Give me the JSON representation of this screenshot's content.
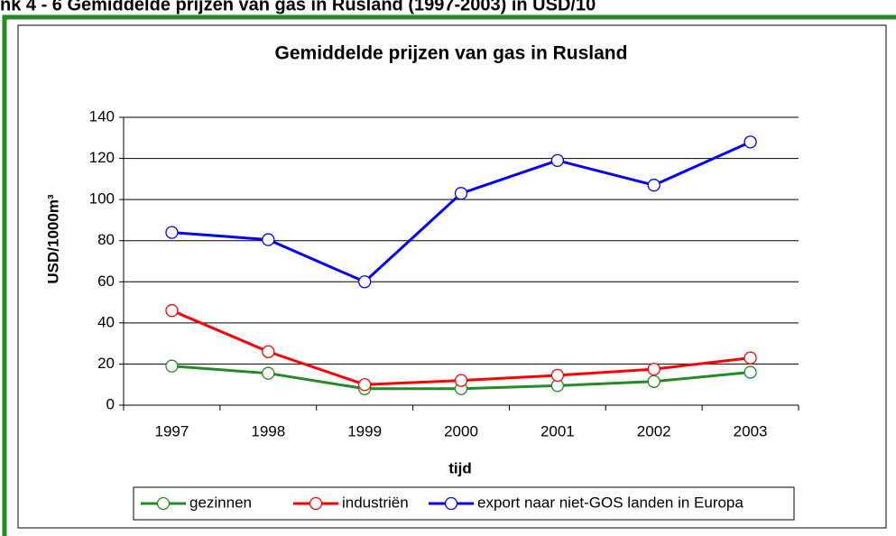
{
  "heading": "nk 4 - 6 Gemiddelde prijzen van gas in Rusland (1997-2003) in USD/10",
  "chart_data": {
    "type": "line",
    "title": "Gemiddelde prijzen van gas in Rusland",
    "x_label": "tijd",
    "y_label": "USD/1000m³",
    "categories": [
      "1997",
      "1998",
      "1999",
      "2000",
      "2001",
      "2002",
      "2003"
    ],
    "series": [
      {
        "name": "gezinnen",
        "color": "#228b22",
        "values": [
          19,
          15.5,
          8,
          8,
          9.5,
          11.5,
          16
        ]
      },
      {
        "name": "industriën",
        "color": "#ff0000",
        "values": [
          46,
          26,
          10,
          12,
          14.5,
          17.5,
          23
        ]
      },
      {
        "name": "export naar niet-GOS landen in Europa",
        "color": "#0000ff",
        "values": [
          84,
          80.5,
          60,
          103,
          119,
          107,
          128
        ]
      }
    ],
    "ylim": [
      0,
      140
    ],
    "yticks": [
      0,
      20,
      40,
      60,
      80,
      100,
      120,
      140
    ],
    "grid": true,
    "legend": "bottom"
  }
}
